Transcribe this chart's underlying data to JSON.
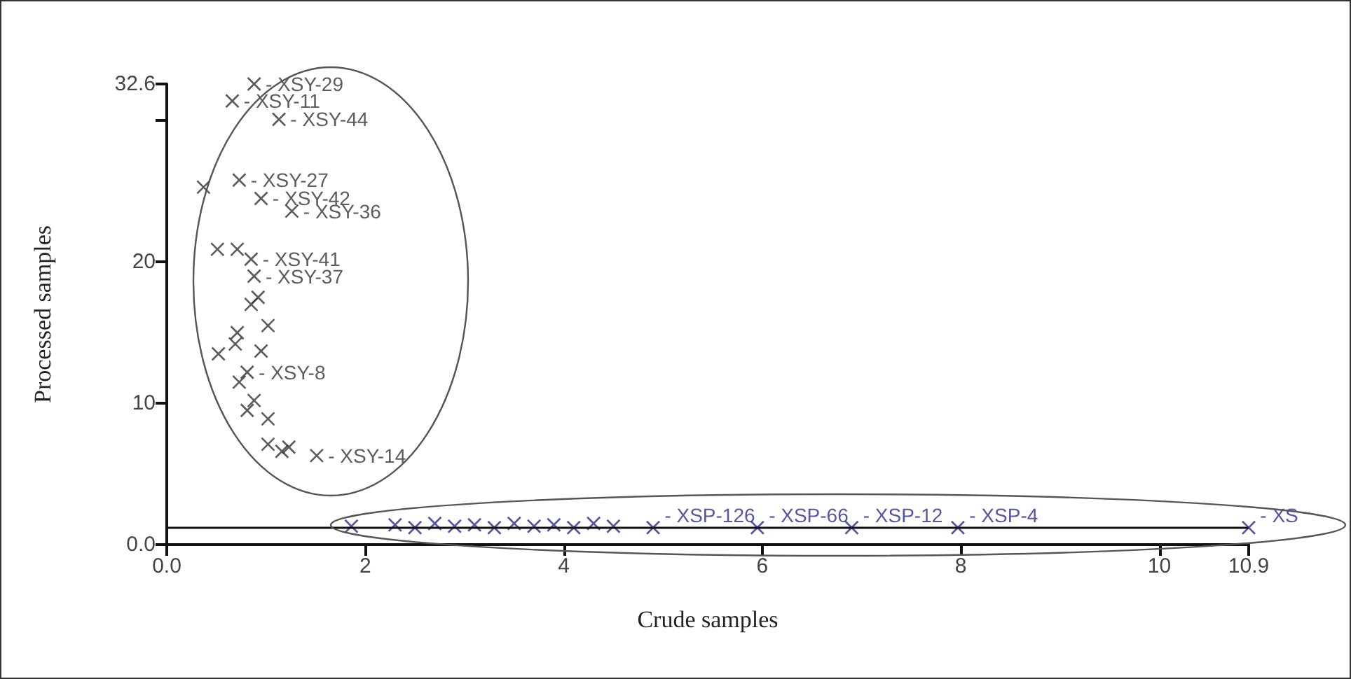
{
  "chart_data": {
    "type": "scatter",
    "xlabel": "Crude samples",
    "ylabel": "Processed samples",
    "xlim": [
      0,
      10.9
    ],
    "ylim": [
      0,
      32.6
    ],
    "xticks": [
      {
        "value": 0,
        "label": "0.0"
      },
      2,
      4,
      6,
      8,
      10,
      10.9
    ],
    "yticks": [
      {
        "value": 0,
        "label": "0.0"
      },
      10,
      20,
      {
        "value": 30,
        "label": null
      },
      32.6
    ],
    "grid": false,
    "marker": "cross",
    "ref_lines": [
      {
        "axis": "y",
        "value": 1.2,
        "label": null,
        "color": "#111111"
      }
    ],
    "series": [
      {
        "color": "#333333",
        "x": [
          0.66,
          0.88,
          1.13,
          0.73,
          0.37,
          0.95,
          1.26,
          0.51,
          0.71,
          0.85,
          0.88,
          0.92,
          0.85,
          1.02,
          0.71,
          0.69,
          0.52,
          0.95,
          0.81,
          0.73,
          0.88,
          0.81,
          1.02,
          1.02,
          1.23,
          1.51,
          1.16
        ],
        "values": [
          31.4,
          32.6,
          30.1,
          25.8,
          25.3,
          24.5,
          23.6,
          20.9,
          20.9,
          20.2,
          19.0,
          17.5,
          17.0,
          15.5,
          15.0,
          14.2,
          13.5,
          13.7,
          12.2,
          11.5,
          10.2,
          9.5,
          8.9,
          7.1,
          6.9,
          6.3,
          6.6
        ],
        "value_labels": [
          "- XSY-11",
          "- XSY-29",
          "- XSY-44",
          "- XSY-27",
          null,
          "- XSY-42",
          "- XSY-36",
          null,
          null,
          "- XSY-41",
          "- XSY-37",
          null,
          null,
          null,
          null,
          null,
          null,
          null,
          "- XSY-8",
          null,
          null,
          null,
          null,
          null,
          null,
          "- XSY-14",
          null
        ]
      },
      {
        "color": "#2b2b8c",
        "x": [
          1.86,
          2.3,
          2.5,
          2.7,
          2.9,
          3.1,
          3.3,
          3.5,
          3.7,
          3.9,
          4.1,
          4.3,
          4.5,
          4.9,
          5.95,
          6.9,
          7.97,
          10.9
        ],
        "values": [
          1.3,
          1.4,
          1.2,
          1.5,
          1.3,
          1.4,
          1.2,
          1.5,
          1.3,
          1.4,
          1.2,
          1.5,
          1.3,
          1.2,
          1.2,
          1.2,
          1.2,
          1.2
        ],
        "value_labels": [
          null,
          null,
          null,
          null,
          null,
          null,
          null,
          null,
          null,
          null,
          null,
          null,
          null,
          "- XSP-126",
          "- XSP-66",
          "- XSP-12",
          "- XSP-4",
          "- XS"
        ]
      }
    ]
  }
}
